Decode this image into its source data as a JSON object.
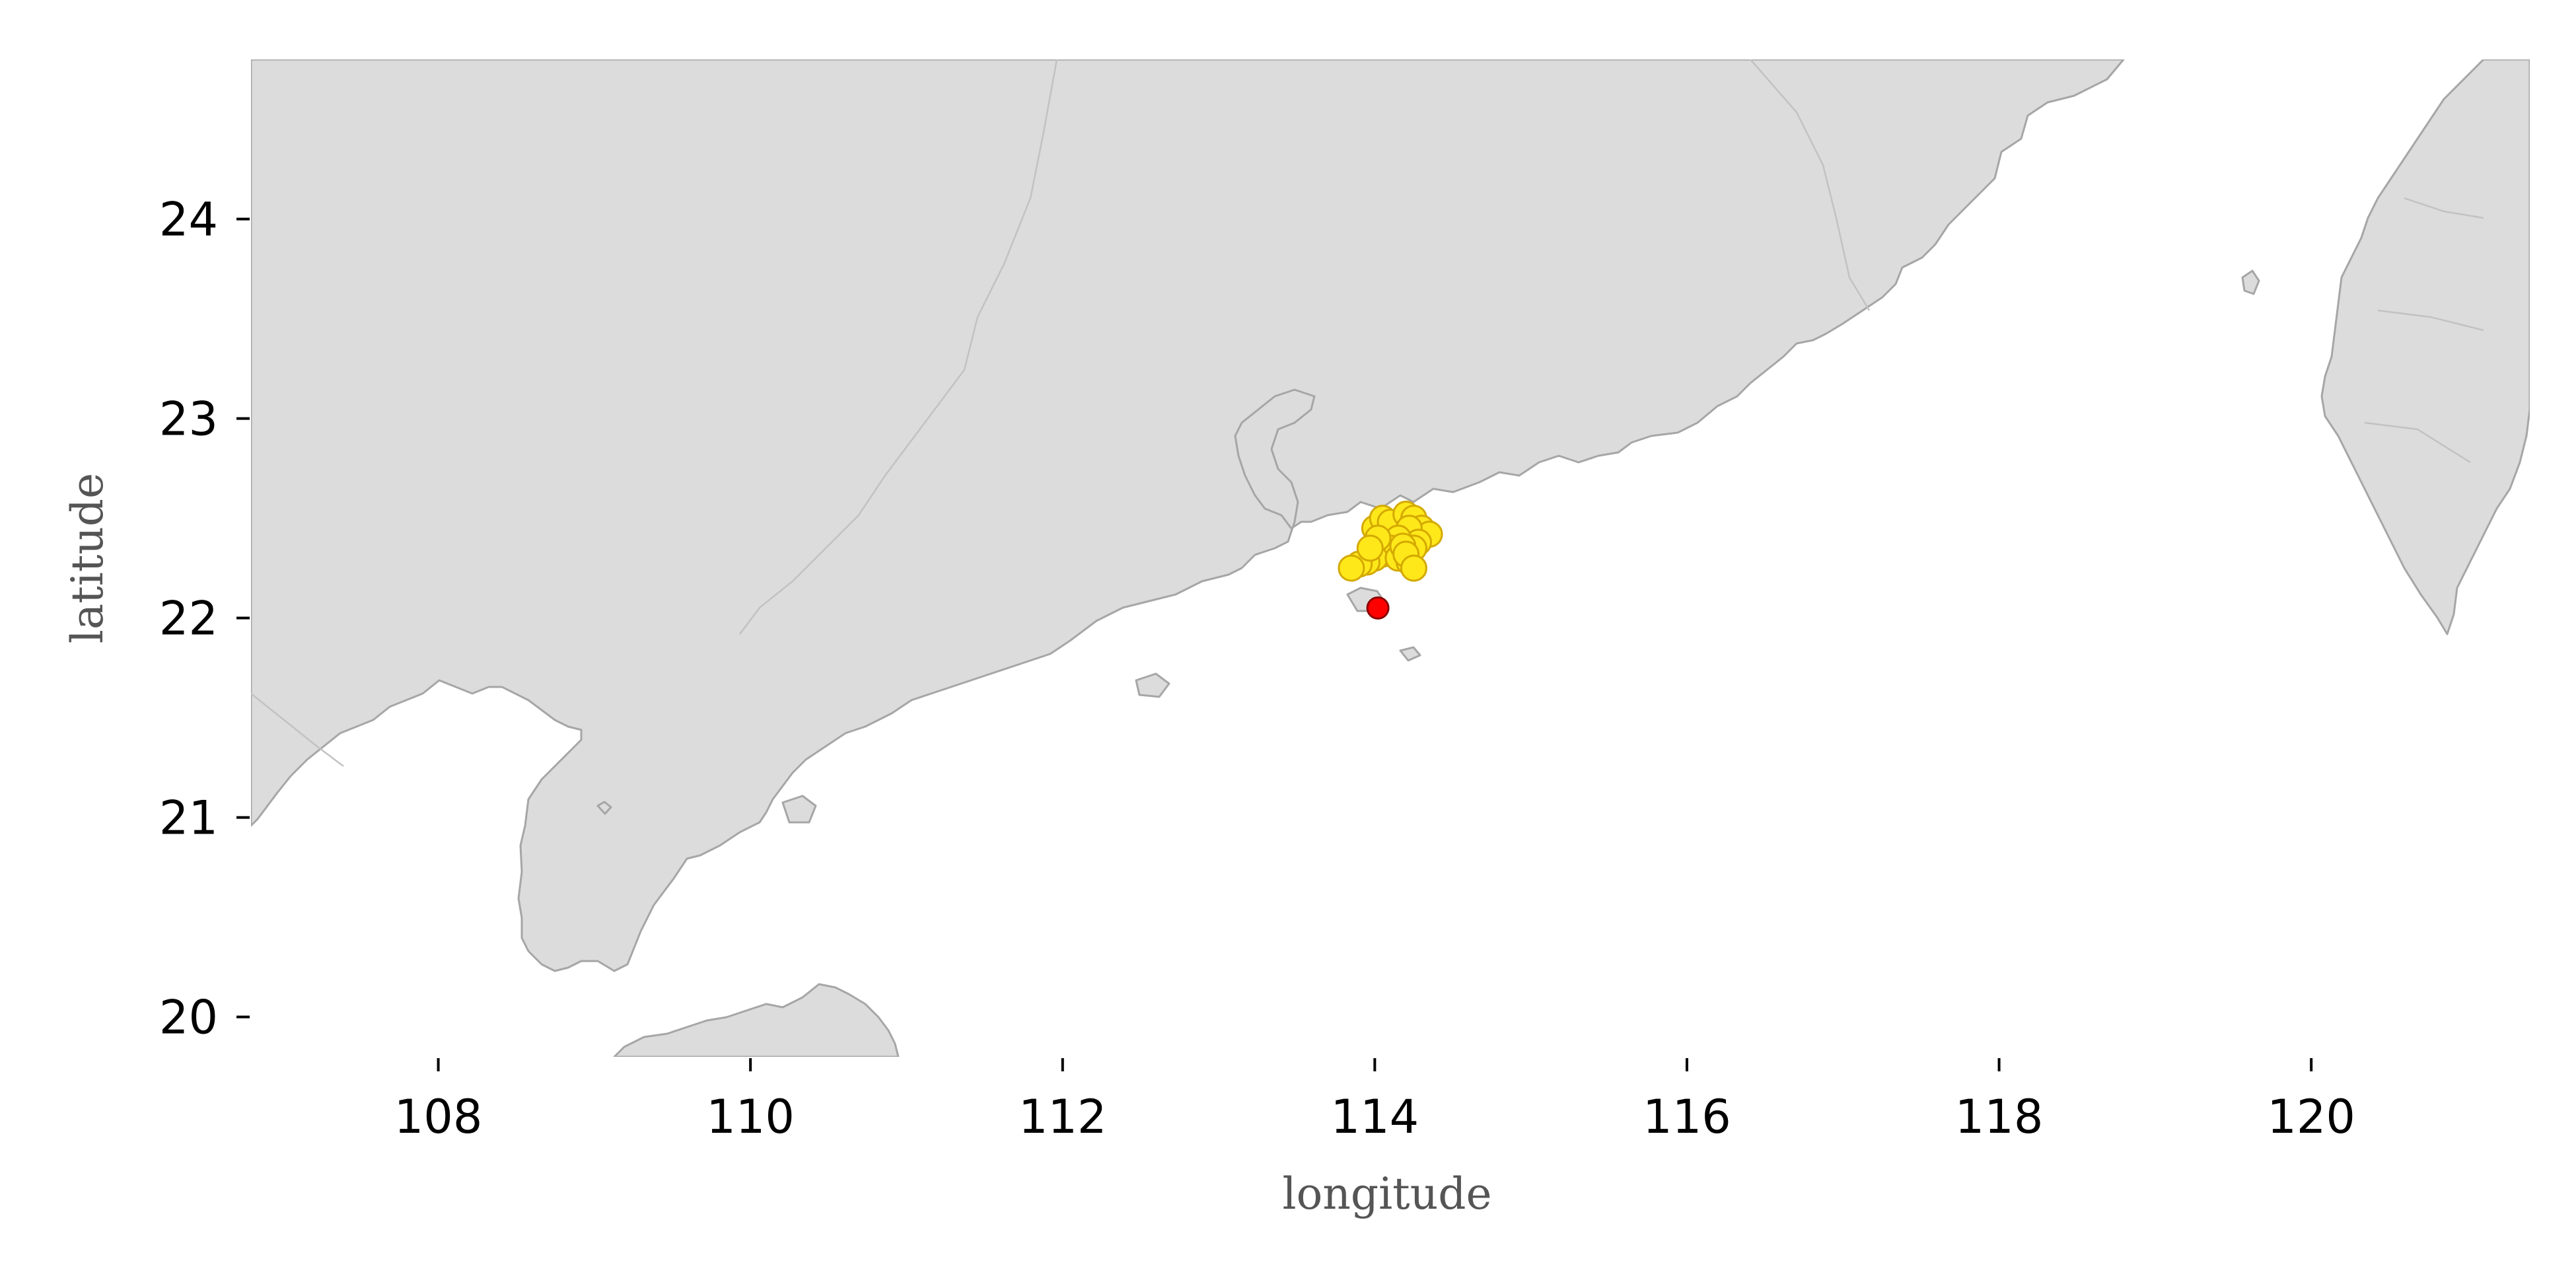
{
  "chart_data": {
    "type": "scatter",
    "map": "south-china-coast",
    "xlabel": "longitude",
    "ylabel": "latitude",
    "xlim": [
      106.8,
      121.4
    ],
    "ylim": [
      19.8,
      24.8
    ],
    "xticks": [
      108,
      110,
      112,
      114,
      116,
      118,
      120
    ],
    "yticks": [
      20,
      21,
      22,
      23,
      24
    ],
    "grid": false,
    "land_color": "#dcdcdc",
    "coast_color": "#a6a6a6",
    "series": [
      {
        "marker_color": "#ffe81a",
        "edge_color": "#d4a900",
        "points": [
          [
            114.0,
            22.45
          ],
          [
            114.05,
            22.5
          ],
          [
            114.1,
            22.48
          ],
          [
            114.2,
            22.52
          ],
          [
            114.25,
            22.5
          ],
          [
            114.3,
            22.45
          ],
          [
            114.35,
            22.42
          ],
          [
            114.22,
            22.45
          ],
          [
            114.28,
            22.38
          ],
          [
            114.15,
            22.4
          ],
          [
            114.1,
            22.35
          ],
          [
            114.05,
            22.32
          ],
          [
            114.0,
            22.3
          ],
          [
            113.95,
            22.28
          ],
          [
            113.9,
            22.27
          ],
          [
            113.85,
            22.25
          ],
          [
            114.15,
            22.3
          ],
          [
            114.22,
            22.28
          ],
          [
            114.25,
            22.35
          ],
          [
            114.18,
            22.36
          ],
          [
            114.02,
            22.4
          ],
          [
            114.2,
            22.32
          ],
          [
            114.25,
            22.25
          ],
          [
            113.97,
            22.35
          ]
        ]
      },
      {
        "marker_color": "#ff0000",
        "edge_color": "#8b0000",
        "points": [
          [
            114.02,
            22.05
          ]
        ]
      }
    ]
  }
}
